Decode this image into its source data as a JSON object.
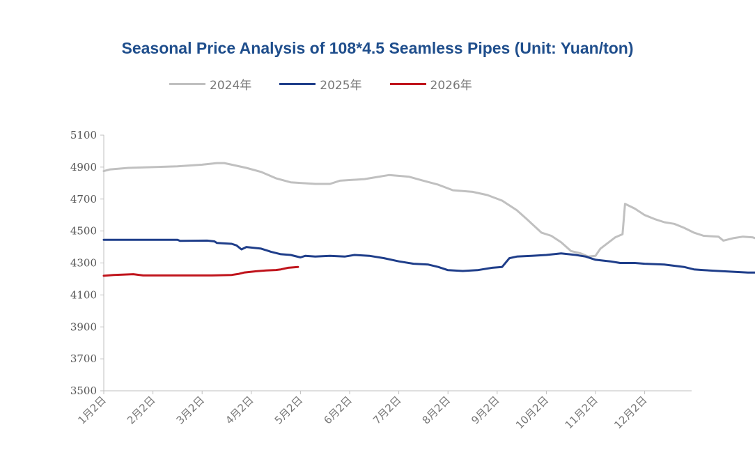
{
  "chart_data": {
    "type": "line",
    "title": "Seasonal Price Analysis of 108*4.5 Seamless Pipes (Unit: Yuan/ton)",
    "xlabel": "",
    "ylabel": "",
    "ylim": [
      3500,
      5100
    ],
    "yticks": [
      "5100",
      "4900",
      "4700",
      "4500",
      "4300",
      "4100",
      "3900",
      "3700",
      "3500"
    ],
    "categories": [
      "1月2日",
      "2月2日",
      "3月2日",
      "4月2日",
      "5月2日",
      "6月2日",
      "7月2日",
      "8月2日",
      "9月2日",
      "10月2日",
      "11月2日",
      "12月2日"
    ],
    "grid": false,
    "legend_position": "top-left",
    "series": [
      {
        "name": "2024年",
        "color": "#c0c0c0",
        "points": [
          [
            0,
            4875
          ],
          [
            0.12,
            4885
          ],
          [
            0.5,
            4895
          ],
          [
            1,
            4900
          ],
          [
            1.5,
            4905
          ],
          [
            2,
            4915
          ],
          [
            2.3,
            4925
          ],
          [
            2.45,
            4925
          ],
          [
            2.6,
            4915
          ],
          [
            2.9,
            4895
          ],
          [
            3.2,
            4870
          ],
          [
            3.5,
            4830
          ],
          [
            3.8,
            4805
          ],
          [
            4.3,
            4795
          ],
          [
            4.6,
            4795
          ],
          [
            4.8,
            4815
          ],
          [
            5.3,
            4825
          ],
          [
            5.6,
            4840
          ],
          [
            5.8,
            4850
          ],
          [
            6.2,
            4840
          ],
          [
            6.5,
            4815
          ],
          [
            6.8,
            4790
          ],
          [
            7.1,
            4755
          ],
          [
            7.5,
            4745
          ],
          [
            7.8,
            4725
          ],
          [
            8.1,
            4690
          ],
          [
            8.4,
            4630
          ],
          [
            8.6,
            4575
          ],
          [
            8.9,
            4490
          ],
          [
            9.1,
            4470
          ],
          [
            9.3,
            4430
          ],
          [
            9.5,
            4375
          ],
          [
            9.7,
            4360
          ],
          [
            9.85,
            4340
          ],
          [
            10.0,
            4345
          ],
          [
            10.1,
            4390
          ],
          [
            10.4,
            4460
          ],
          [
            10.55,
            4480
          ],
          [
            10.6,
            4670
          ],
          [
            10.8,
            4640
          ],
          [
            11.0,
            4600
          ],
          [
            11.2,
            4575
          ],
          [
            11.4,
            4555
          ],
          [
            11.6,
            4545
          ],
          [
            11.8,
            4520
          ],
          [
            12.0,
            4490
          ],
          [
            12.2,
            4470
          ],
          [
            12.5,
            4465
          ],
          [
            12.6,
            4440
          ],
          [
            12.8,
            4455
          ],
          [
            13.0,
            4465
          ],
          [
            13.2,
            4460
          ],
          [
            13.3,
            4450
          ]
        ]
      },
      {
        "name": "2025年",
        "color": "#1f3e8a",
        "points": [
          [
            0,
            4445
          ],
          [
            1,
            4445
          ],
          [
            1.5,
            4445
          ],
          [
            1.55,
            4438
          ],
          [
            2.1,
            4440
          ],
          [
            2.25,
            4435
          ],
          [
            2.3,
            4425
          ],
          [
            2.6,
            4420
          ],
          [
            2.7,
            4410
          ],
          [
            2.8,
            4385
          ],
          [
            2.9,
            4400
          ],
          [
            3.2,
            4390
          ],
          [
            3.4,
            4370
          ],
          [
            3.6,
            4355
          ],
          [
            3.8,
            4350
          ],
          [
            4.0,
            4335
          ],
          [
            4.1,
            4345
          ],
          [
            4.3,
            4340
          ],
          [
            4.6,
            4345
          ],
          [
            4.9,
            4340
          ],
          [
            5.1,
            4350
          ],
          [
            5.4,
            4345
          ],
          [
            5.7,
            4330
          ],
          [
            6.0,
            4310
          ],
          [
            6.3,
            4295
          ],
          [
            6.6,
            4290
          ],
          [
            6.8,
            4275
          ],
          [
            7.0,
            4255
          ],
          [
            7.3,
            4250
          ],
          [
            7.6,
            4255
          ],
          [
            7.9,
            4270
          ],
          [
            8.1,
            4275
          ],
          [
            8.25,
            4330
          ],
          [
            8.4,
            4340
          ],
          [
            8.7,
            4345
          ],
          [
            9.0,
            4350
          ],
          [
            9.3,
            4360
          ],
          [
            9.6,
            4350
          ],
          [
            9.8,
            4340
          ],
          [
            10.0,
            4320
          ],
          [
            10.3,
            4310
          ],
          [
            10.5,
            4300
          ],
          [
            10.8,
            4300
          ],
          [
            11.0,
            4295
          ],
          [
            11.4,
            4290
          ],
          [
            11.8,
            4275
          ],
          [
            12.0,
            4260
          ],
          [
            12.2,
            4255
          ],
          [
            12.5,
            4250
          ],
          [
            12.8,
            4245
          ],
          [
            13.1,
            4240
          ],
          [
            13.4,
            4240
          ],
          [
            13.8,
            4245
          ],
          [
            14.1,
            4240
          ],
          [
            14.3,
            4235
          ],
          [
            14.5,
            4225
          ]
        ]
      },
      {
        "name": "2026年",
        "color": "#c0141c",
        "points": [
          [
            0,
            4220
          ],
          [
            0.2,
            4225
          ],
          [
            0.6,
            4230
          ],
          [
            0.8,
            4222
          ],
          [
            1.2,
            4222
          ],
          [
            1.6,
            4222
          ],
          [
            2.2,
            4222
          ],
          [
            2.6,
            4225
          ],
          [
            2.75,
            4232
          ],
          [
            2.85,
            4240
          ],
          [
            3.1,
            4248
          ],
          [
            3.3,
            4253
          ],
          [
            3.5,
            4256
          ],
          [
            3.6,
            4260
          ],
          [
            3.75,
            4270
          ],
          [
            3.95,
            4275
          ]
        ]
      }
    ]
  }
}
